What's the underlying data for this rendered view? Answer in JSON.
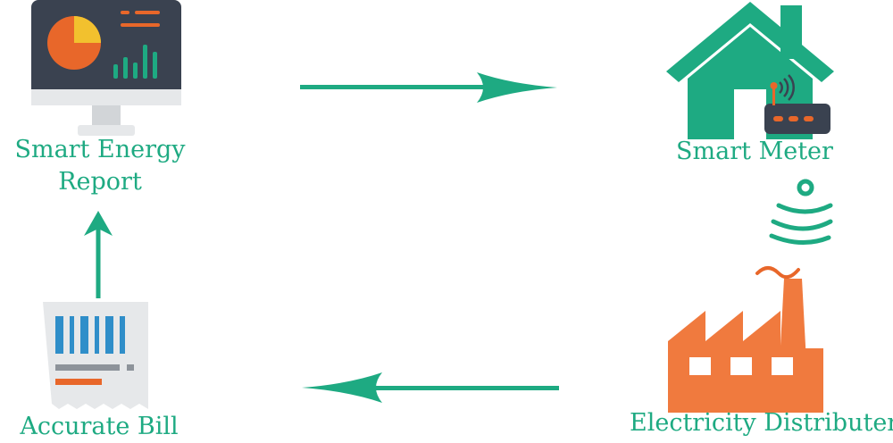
{
  "nodes": {
    "report": {
      "label_line1": "Smart Energy",
      "label_line2": "Report",
      "icon": "monitor-chart-icon"
    },
    "meter": {
      "label": "Smart Meter",
      "icon": "house-router-icon"
    },
    "distributor": {
      "label": "Electricity Distributer",
      "icon": "factory-icon"
    },
    "bill": {
      "label": "Accurate Bill",
      "icon": "receipt-barcode-icon"
    }
  },
  "connectors": [
    "report-to-meter",
    "meter-to-distributor",
    "distributor-to-bill",
    "bill-to-report"
  ],
  "colors": {
    "teal": "#1eaa82",
    "orange": "#e8672a",
    "dark": "#3a4250",
    "light_gray": "#e6e8ea",
    "yellow": "#f2c12e",
    "blue": "#2f8ec9"
  }
}
